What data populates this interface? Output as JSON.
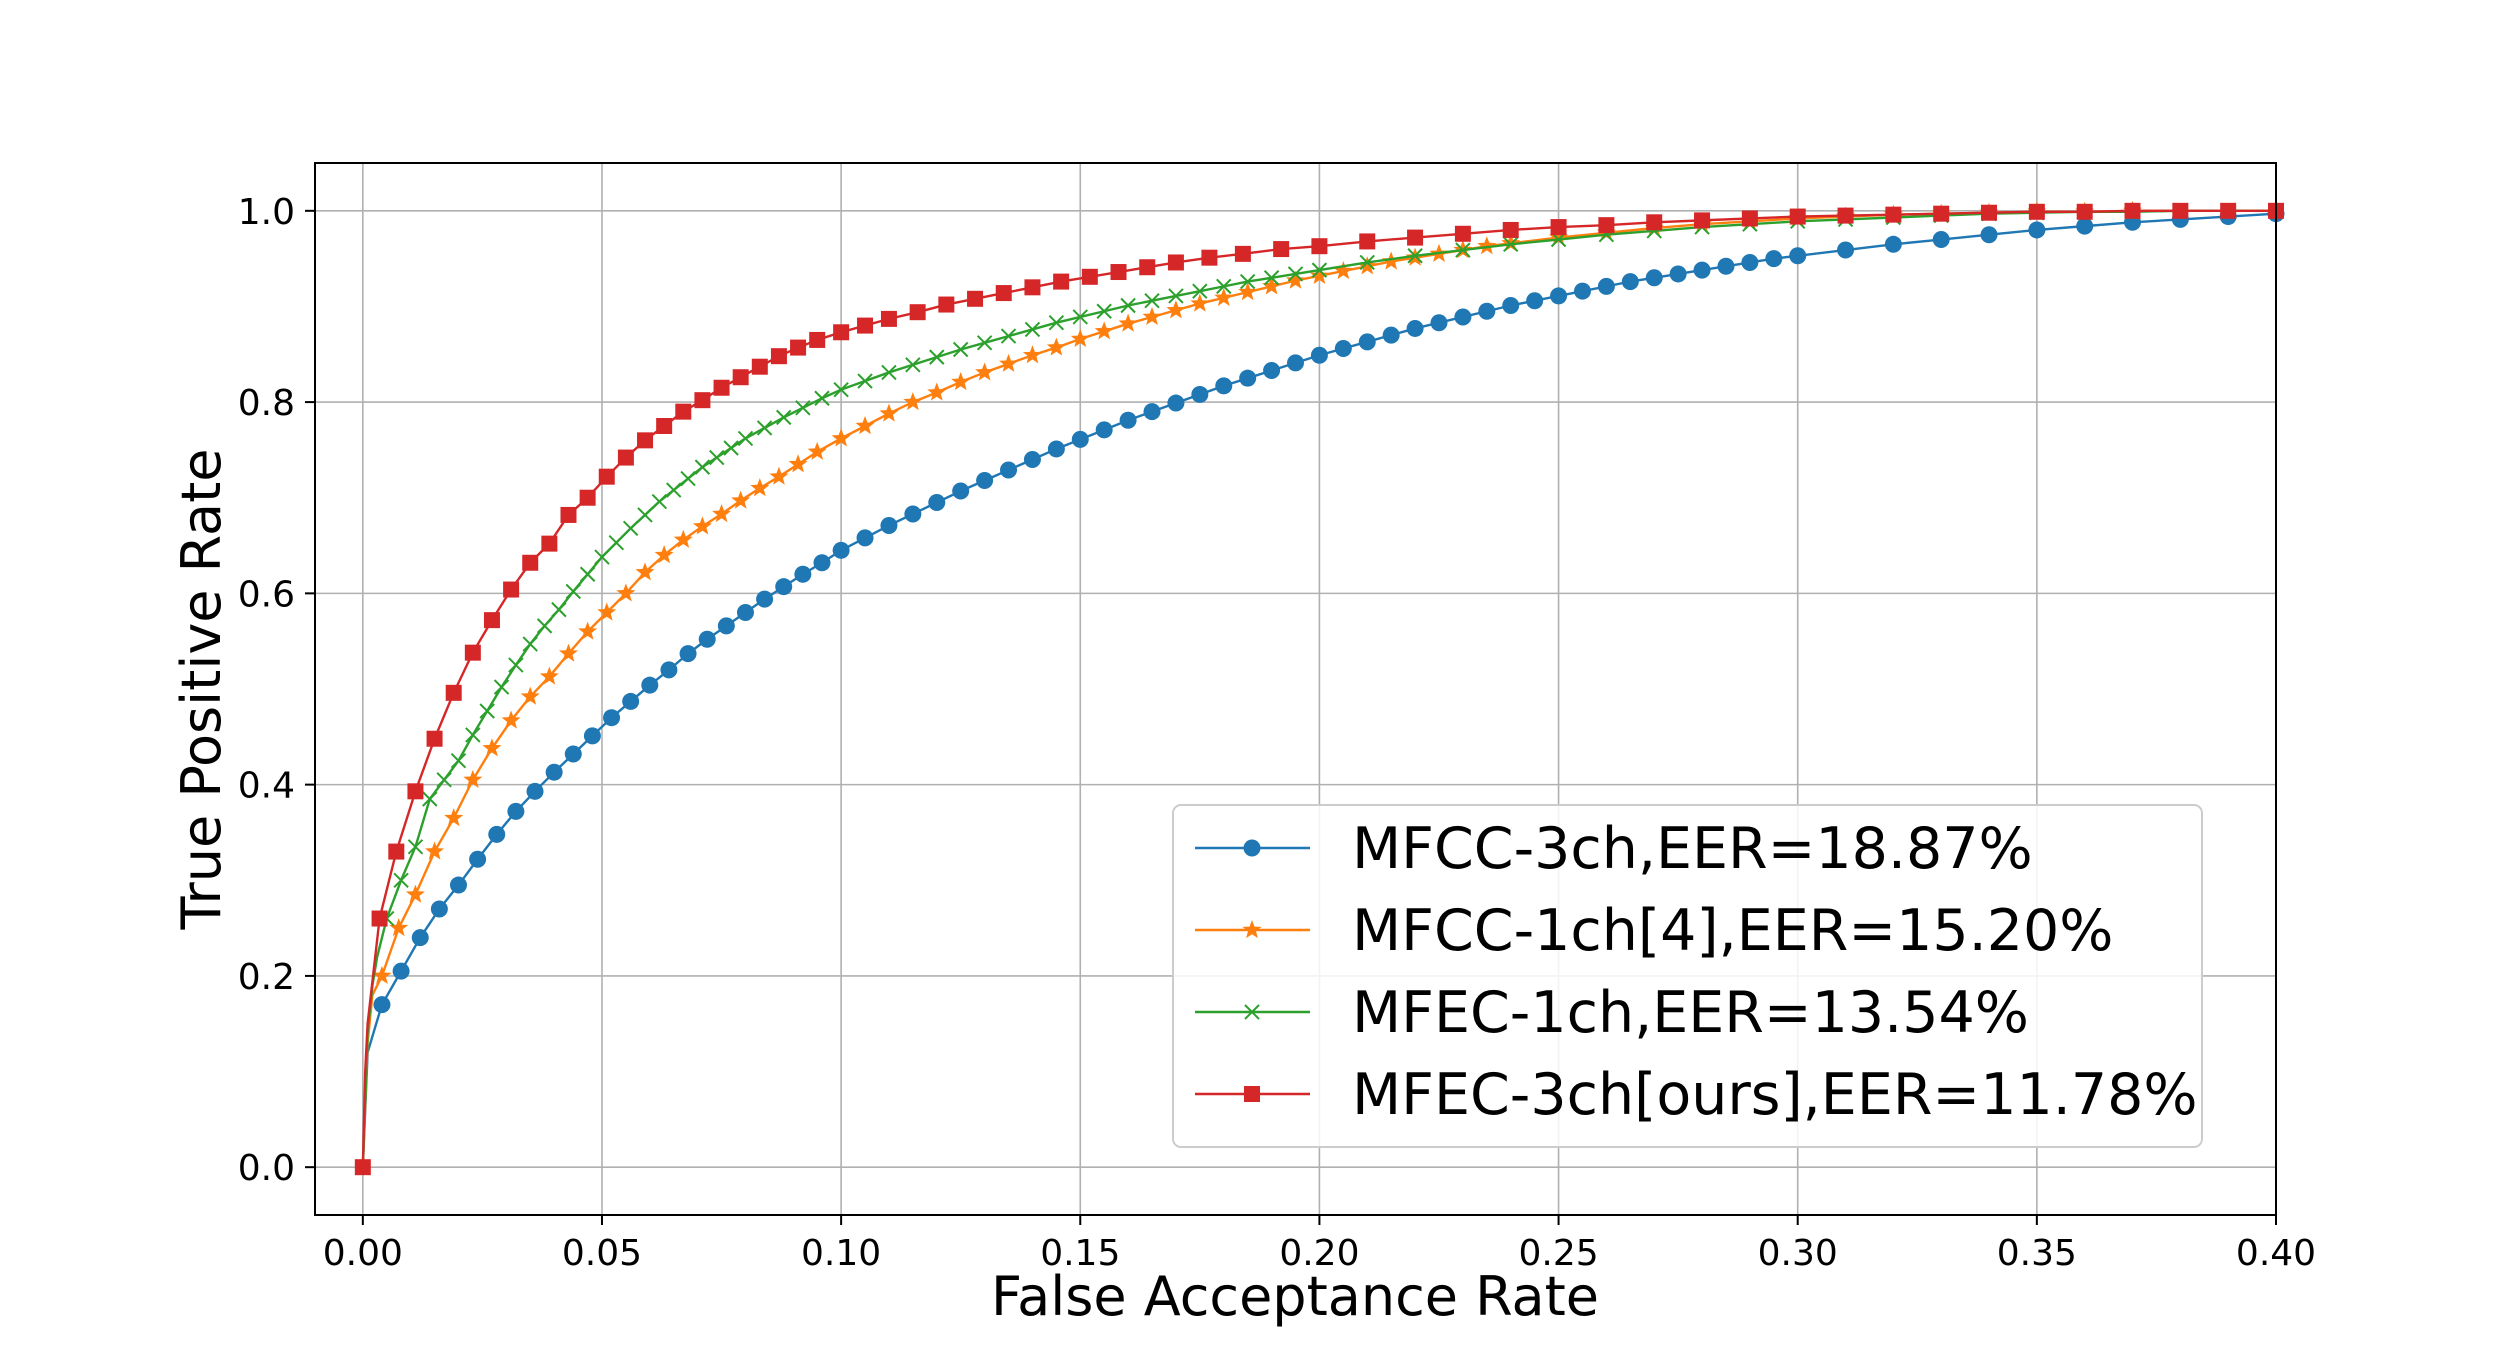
{
  "chart_data": {
    "type": "line",
    "title": "",
    "xlabel": "False Acceptance Rate",
    "ylabel": "True Positive Rate",
    "xlim": [
      -0.01,
      0.4
    ],
    "ylim": [
      -0.05,
      1.05
    ],
    "xticks": [
      0.0,
      0.05,
      0.1,
      0.15,
      0.2,
      0.25,
      0.3,
      0.35,
      0.4
    ],
    "xtick_labels": [
      "0.00",
      "0.05",
      "0.10",
      "0.15",
      "0.20",
      "0.25",
      "0.30",
      "0.35",
      "0.40"
    ],
    "yticks": [
      0.0,
      0.2,
      0.4,
      0.6,
      0.8,
      1.0
    ],
    "ytick_labels": [
      "0.0",
      "0.2",
      "0.4",
      "0.6",
      "0.8",
      "1.0"
    ],
    "grid": true,
    "legend_position": "lower-right",
    "series": [
      {
        "name": "MFCC-3ch,EER=18.87%",
        "color": "#1f77b4",
        "marker": "circle",
        "x": [
          0,
          0.001,
          0.004,
          0.008,
          0.012,
          0.016,
          0.02,
          0.024,
          0.028,
          0.032,
          0.036,
          0.04,
          0.044,
          0.048,
          0.052,
          0.056,
          0.06,
          0.064,
          0.068,
          0.072,
          0.076,
          0.08,
          0.084,
          0.088,
          0.092,
          0.096,
          0.1,
          0.105,
          0.11,
          0.115,
          0.12,
          0.125,
          0.13,
          0.135,
          0.14,
          0.145,
          0.15,
          0.155,
          0.16,
          0.165,
          0.17,
          0.175,
          0.18,
          0.185,
          0.19,
          0.195,
          0.2,
          0.205,
          0.21,
          0.215,
          0.22,
          0.225,
          0.23,
          0.235,
          0.24,
          0.245,
          0.25,
          0.255,
          0.26,
          0.265,
          0.27,
          0.275,
          0.28,
          0.285,
          0.29,
          0.295,
          0.3,
          0.31,
          0.32,
          0.33,
          0.34,
          0.35,
          0.36,
          0.37,
          0.38,
          0.39,
          0.4
        ],
        "y": [
          0,
          0.12,
          0.17,
          0.205,
          0.24,
          0.27,
          0.295,
          0.322,
          0.348,
          0.372,
          0.393,
          0.413,
          0.432,
          0.451,
          0.47,
          0.487,
          0.504,
          0.52,
          0.537,
          0.552,
          0.566,
          0.58,
          0.594,
          0.607,
          0.62,
          0.632,
          0.645,
          0.658,
          0.671,
          0.683,
          0.695,
          0.707,
          0.718,
          0.729,
          0.74,
          0.751,
          0.761,
          0.771,
          0.781,
          0.79,
          0.799,
          0.808,
          0.817,
          0.825,
          0.833,
          0.841,
          0.849,
          0.856,
          0.863,
          0.87,
          0.877,
          0.883,
          0.889,
          0.895,
          0.901,
          0.906,
          0.911,
          0.916,
          0.921,
          0.926,
          0.93,
          0.934,
          0.938,
          0.942,
          0.946,
          0.95,
          0.953,
          0.959,
          0.965,
          0.97,
          0.975,
          0.98,
          0.984,
          0.988,
          0.991,
          0.994,
          0.997
        ],
        "marker_x": [
          0.004,
          0.008,
          0.012,
          0.016,
          0.02,
          0.024,
          0.028,
          0.032,
          0.036,
          0.04,
          0.044,
          0.048,
          0.052,
          0.056,
          0.06,
          0.064,
          0.068,
          0.072,
          0.076,
          0.08,
          0.084,
          0.088,
          0.092,
          0.096,
          0.1,
          0.105,
          0.11,
          0.115,
          0.12,
          0.125,
          0.13,
          0.135,
          0.14,
          0.145,
          0.15,
          0.155,
          0.16,
          0.165,
          0.17,
          0.175,
          0.18,
          0.185,
          0.19,
          0.195,
          0.2,
          0.205,
          0.21,
          0.215,
          0.22,
          0.225,
          0.23,
          0.235,
          0.24,
          0.245,
          0.25,
          0.255,
          0.26,
          0.265,
          0.27,
          0.275,
          0.28,
          0.285,
          0.29,
          0.295,
          0.3,
          0.31,
          0.32,
          0.33,
          0.34,
          0.35,
          0.36,
          0.37,
          0.38,
          0.39,
          0.4
        ]
      },
      {
        "name": "MFCC-1ch[4],EER=15.20%",
        "color": "#ff7f0e",
        "marker": "star",
        "x": [
          0,
          0.001,
          0.002,
          0.004,
          0.0075,
          0.011,
          0.015,
          0.019,
          0.023,
          0.027,
          0.031,
          0.035,
          0.039,
          0.043,
          0.047,
          0.051,
          0.055,
          0.059,
          0.063,
          0.067,
          0.071,
          0.075,
          0.079,
          0.083,
          0.087,
          0.091,
          0.095,
          0.1,
          0.105,
          0.11,
          0.115,
          0.12,
          0.125,
          0.13,
          0.135,
          0.14,
          0.145,
          0.15,
          0.155,
          0.16,
          0.165,
          0.17,
          0.175,
          0.18,
          0.185,
          0.19,
          0.195,
          0.2,
          0.205,
          0.21,
          0.215,
          0.22,
          0.225,
          0.23,
          0.235,
          0.24,
          0.25,
          0.26,
          0.27,
          0.28,
          0.29,
          0.3,
          0.31,
          0.32,
          0.33,
          0.34,
          0.35,
          0.36,
          0.37,
          0.38,
          0.39,
          0.4
        ],
        "y": [
          0,
          0.13,
          0.18,
          0.2,
          0.25,
          0.285,
          0.33,
          0.365,
          0.405,
          0.438,
          0.467,
          0.492,
          0.513,
          0.537,
          0.56,
          0.58,
          0.6,
          0.622,
          0.64,
          0.656,
          0.67,
          0.683,
          0.697,
          0.71,
          0.722,
          0.735,
          0.748,
          0.762,
          0.775,
          0.788,
          0.8,
          0.81,
          0.821,
          0.831,
          0.84,
          0.849,
          0.857,
          0.866,
          0.874,
          0.882,
          0.889,
          0.896,
          0.903,
          0.909,
          0.915,
          0.921,
          0.927,
          0.932,
          0.937,
          0.942,
          0.947,
          0.951,
          0.955,
          0.959,
          0.963,
          0.966,
          0.972,
          0.977,
          0.982,
          0.986,
          0.989,
          0.992,
          0.994,
          0.996,
          0.997,
          0.998,
          0.999,
          0.999,
          1.0,
          1.0,
          1.0,
          1.0
        ],
        "marker_x": [
          0.004,
          0.0075,
          0.011,
          0.015,
          0.019,
          0.023,
          0.027,
          0.031,
          0.035,
          0.039,
          0.043,
          0.047,
          0.051,
          0.055,
          0.059,
          0.063,
          0.067,
          0.071,
          0.075,
          0.079,
          0.083,
          0.087,
          0.091,
          0.095,
          0.1,
          0.105,
          0.11,
          0.115,
          0.12,
          0.125,
          0.13,
          0.135,
          0.14,
          0.145,
          0.15,
          0.155,
          0.16,
          0.165,
          0.17,
          0.175,
          0.18,
          0.185,
          0.19,
          0.195,
          0.2,
          0.205,
          0.21,
          0.215,
          0.22,
          0.225,
          0.23,
          0.235,
          0.24,
          0.25,
          0.26,
          0.27,
          0.28,
          0.29,
          0.3,
          0.31,
          0.32,
          0.33,
          0.34,
          0.35,
          0.36,
          0.37
        ]
      },
      {
        "name": "MFEC-1ch,EER=13.54%",
        "color": "#2ca02c",
        "marker": "x",
        "x": [
          0,
          0.001,
          0.002,
          0.003,
          0.005,
          0.008,
          0.011,
          0.014,
          0.017,
          0.02,
          0.023,
          0.026,
          0.029,
          0.032,
          0.035,
          0.038,
          0.041,
          0.044,
          0.047,
          0.05,
          0.053,
          0.056,
          0.059,
          0.062,
          0.065,
          0.068,
          0.071,
          0.074,
          0.077,
          0.08,
          0.084,
          0.088,
          0.092,
          0.096,
          0.1,
          0.105,
          0.11,
          0.115,
          0.12,
          0.125,
          0.13,
          0.135,
          0.14,
          0.145,
          0.15,
          0.155,
          0.16,
          0.165,
          0.17,
          0.175,
          0.18,
          0.185,
          0.19,
          0.195,
          0.2,
          0.21,
          0.22,
          0.23,
          0.24,
          0.25,
          0.26,
          0.27,
          0.28,
          0.29,
          0.3,
          0.31,
          0.32,
          0.33,
          0.34,
          0.35,
          0.36,
          0.37,
          0.38,
          0.39,
          0.4
        ],
        "y": [
          0,
          0.14,
          0.19,
          0.22,
          0.26,
          0.3,
          0.335,
          0.385,
          0.405,
          0.425,
          0.452,
          0.477,
          0.502,
          0.525,
          0.547,
          0.566,
          0.583,
          0.602,
          0.62,
          0.638,
          0.653,
          0.668,
          0.682,
          0.696,
          0.708,
          0.72,
          0.732,
          0.742,
          0.752,
          0.762,
          0.773,
          0.784,
          0.794,
          0.804,
          0.813,
          0.822,
          0.831,
          0.839,
          0.847,
          0.855,
          0.862,
          0.869,
          0.876,
          0.883,
          0.889,
          0.895,
          0.901,
          0.906,
          0.911,
          0.916,
          0.921,
          0.926,
          0.93,
          0.934,
          0.938,
          0.946,
          0.953,
          0.959,
          0.965,
          0.97,
          0.975,
          0.979,
          0.983,
          0.986,
          0.989,
          0.991,
          0.993,
          0.995,
          0.997,
          0.998,
          0.999,
          0.999,
          1.0,
          1.0,
          1.0
        ],
        "marker_x": [
          0.005,
          0.008,
          0.011,
          0.014,
          0.017,
          0.02,
          0.023,
          0.026,
          0.029,
          0.032,
          0.035,
          0.038,
          0.041,
          0.044,
          0.047,
          0.05,
          0.053,
          0.056,
          0.059,
          0.062,
          0.065,
          0.068,
          0.071,
          0.074,
          0.077,
          0.08,
          0.084,
          0.088,
          0.092,
          0.096,
          0.1,
          0.105,
          0.11,
          0.115,
          0.12,
          0.125,
          0.13,
          0.135,
          0.14,
          0.145,
          0.15,
          0.155,
          0.16,
          0.165,
          0.17,
          0.175,
          0.18,
          0.185,
          0.19,
          0.195,
          0.2,
          0.21,
          0.22,
          0.23,
          0.24,
          0.25,
          0.26,
          0.27,
          0.28,
          0.29,
          0.3,
          0.31,
          0.32,
          0.33,
          0.34,
          0.35,
          0.36,
          0.37,
          0.38
        ]
      },
      {
        "name": "MFEC-3ch[ours],EER=11.78%",
        "color": "#d62728",
        "marker": "square",
        "x": [
          0,
          0.0005,
          0.001,
          0.0035,
          0.007,
          0.011,
          0.015,
          0.019,
          0.023,
          0.027,
          0.031,
          0.035,
          0.039,
          0.043,
          0.047,
          0.051,
          0.055,
          0.059,
          0.063,
          0.067,
          0.071,
          0.075,
          0.079,
          0.083,
          0.087,
          0.091,
          0.095,
          0.1,
          0.105,
          0.11,
          0.116,
          0.122,
          0.128,
          0.134,
          0.14,
          0.146,
          0.152,
          0.158,
          0.164,
          0.17,
          0.177,
          0.184,
          0.192,
          0.2,
          0.21,
          0.22,
          0.23,
          0.24,
          0.25,
          0.26,
          0.27,
          0.28,
          0.29,
          0.3,
          0.31,
          0.32,
          0.33,
          0.34,
          0.35,
          0.36,
          0.37,
          0.38,
          0.39,
          0.4
        ],
        "y": [
          0,
          0.1,
          0.15,
          0.26,
          0.33,
          0.393,
          0.448,
          0.496,
          0.538,
          0.572,
          0.604,
          0.632,
          0.652,
          0.682,
          0.7,
          0.722,
          0.742,
          0.76,
          0.775,
          0.79,
          0.802,
          0.815,
          0.826,
          0.837,
          0.848,
          0.857,
          0.865,
          0.873,
          0.88,
          0.887,
          0.894,
          0.902,
          0.908,
          0.914,
          0.92,
          0.926,
          0.931,
          0.936,
          0.941,
          0.946,
          0.951,
          0.955,
          0.96,
          0.963,
          0.968,
          0.972,
          0.976,
          0.98,
          0.983,
          0.985,
          0.988,
          0.99,
          0.992,
          0.994,
          0.995,
          0.996,
          0.997,
          0.998,
          0.999,
          0.999,
          1.0,
          1.0,
          1.0,
          1.0
        ],
        "marker_x": [
          0,
          0.0035,
          0.007,
          0.011,
          0.015,
          0.019,
          0.023,
          0.027,
          0.031,
          0.035,
          0.039,
          0.043,
          0.047,
          0.051,
          0.055,
          0.059,
          0.063,
          0.067,
          0.071,
          0.075,
          0.079,
          0.083,
          0.087,
          0.091,
          0.095,
          0.1,
          0.105,
          0.11,
          0.116,
          0.122,
          0.128,
          0.134,
          0.14,
          0.146,
          0.152,
          0.158,
          0.164,
          0.17,
          0.177,
          0.184,
          0.192,
          0.2,
          0.21,
          0.22,
          0.23,
          0.24,
          0.25,
          0.26,
          0.27,
          0.28,
          0.29,
          0.3,
          0.31,
          0.32,
          0.33,
          0.34,
          0.35,
          0.36,
          0.37,
          0.38,
          0.39,
          0.4
        ]
      }
    ]
  }
}
